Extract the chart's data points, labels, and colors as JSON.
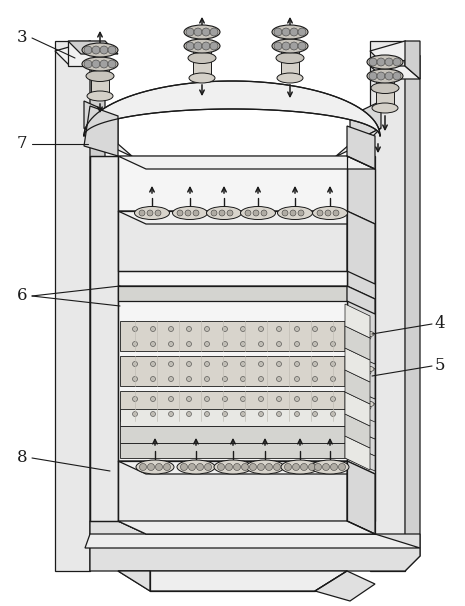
{
  "bg_color": "#ffffff",
  "line_color": "#1a1a1a",
  "label_fontsize": 12,
  "lw": 0.9,
  "colors": {
    "pillar_face": "#e8e8e8",
    "pillar_side": "#d0d0d0",
    "pillar_top": "#f0f0f0",
    "arch_top": "#f0f0f0",
    "arch_face": "#e0e0e0",
    "arch_side": "#d8d8d8",
    "frame_face": "#e8e8e8",
    "frame_side": "#d8d8d8",
    "frame_top": "#f0f0f0",
    "base_face": "#e0e0e0",
    "base_top": "#eeeeee",
    "roll_body": "#d8d4cc",
    "roll_texture": "#c0bdb5",
    "plate_light": "#e8e8e4",
    "plate_dark": "#d4d4d0",
    "backing_roll": "#d8d4cc",
    "backing_dot": "#b0aca4",
    "cylinder_body": "#d4d0c8",
    "cylinder_cap": "#c8c4bc",
    "cylinder_dot": "#a0a0a0"
  }
}
